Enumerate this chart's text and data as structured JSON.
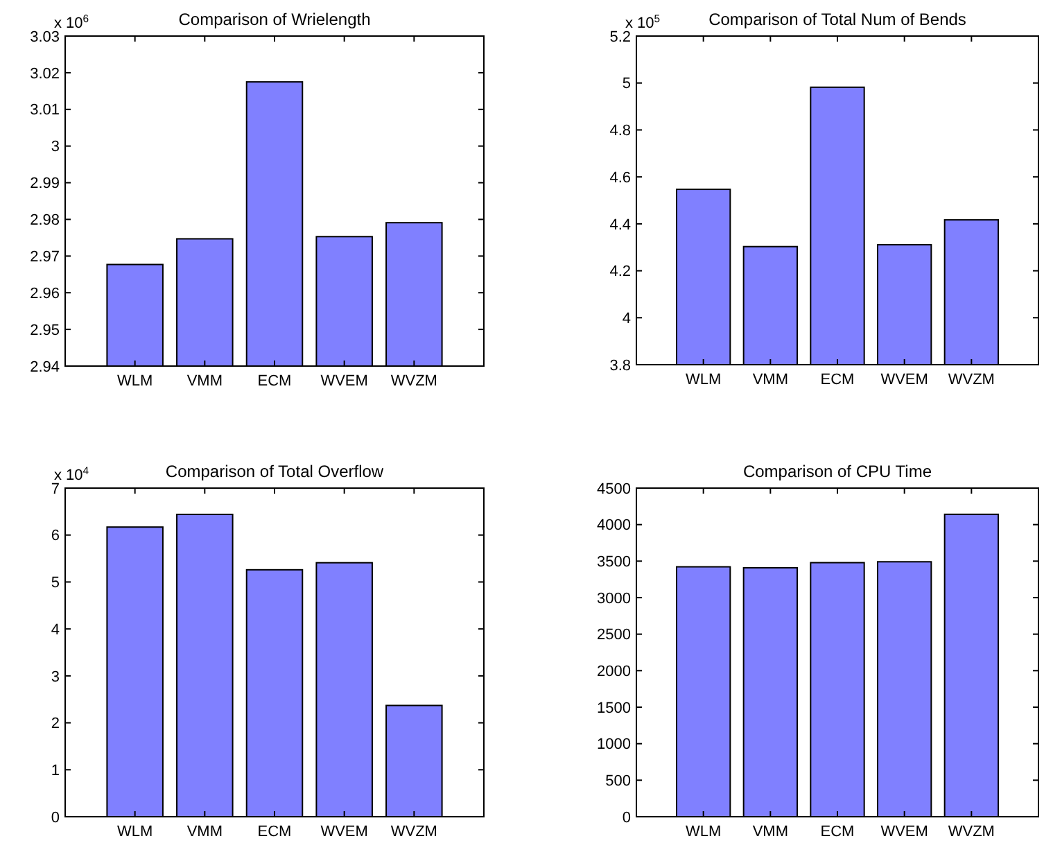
{
  "chart_data": [
    {
      "type": "bar",
      "title": "Comparison of Wrielength",
      "annotations": [
        "x 10$^{6}$"
      ],
      "categories": [
        "WLM",
        "VMM",
        "ECM",
        "WVEM",
        "WVZM"
      ],
      "values": [
        2.9677,
        2.9747,
        3.0175,
        2.9753,
        2.9791
      ],
      "color": "#8080ff",
      "ylim": [
        2.94,
        3.03
      ],
      "yticks": [
        2.94,
        2.95,
        2.96,
        2.97,
        2.98,
        2.99,
        3,
        3.01,
        3.02,
        3.03
      ],
      "grid": false
    },
    {
      "type": "bar",
      "title": "Comparison of Total Num of Bends",
      "annotations": [
        "x 10$^{5}$"
      ],
      "categories": [
        "WLM",
        "VMM",
        "ECM",
        "WVEM",
        "WVZM"
      ],
      "values": [
        4.547,
        4.303,
        4.982,
        4.311,
        4.417
      ],
      "color": "#8080ff",
      "ylim": [
        3.8,
        5.2
      ],
      "yticks": [
        3.8,
        4,
        4.2,
        4.4,
        4.6,
        4.8,
        5,
        5.2
      ],
      "grid": false
    },
    {
      "type": "bar",
      "title": "Comparison of Total Overflow",
      "annotations": [
        "x 10$^{4}$"
      ],
      "categories": [
        "WLM",
        "VMM",
        "ECM",
        "WVEM",
        "WVZM"
      ],
      "values": [
        6.17,
        6.44,
        5.26,
        5.41,
        2.37
      ],
      "color": "#8080ff",
      "ylim": [
        0,
        7
      ],
      "yticks": [
        0,
        1,
        2,
        3,
        4,
        5,
        6,
        7
      ],
      "grid": false
    },
    {
      "type": "bar",
      "title": "Comparison of CPU Time",
      "categories": [
        "WLM",
        "VMM",
        "ECM",
        "WVEM",
        "WVZM"
      ],
      "values": [
        3422,
        3409,
        3479,
        3491,
        4141
      ],
      "color": "#8080ff",
      "ylim": [
        0,
        4500
      ],
      "yticks": [
        0,
        500,
        1000,
        1500,
        2000,
        2500,
        3000,
        3500,
        4000,
        4500
      ],
      "grid": false
    }
  ]
}
